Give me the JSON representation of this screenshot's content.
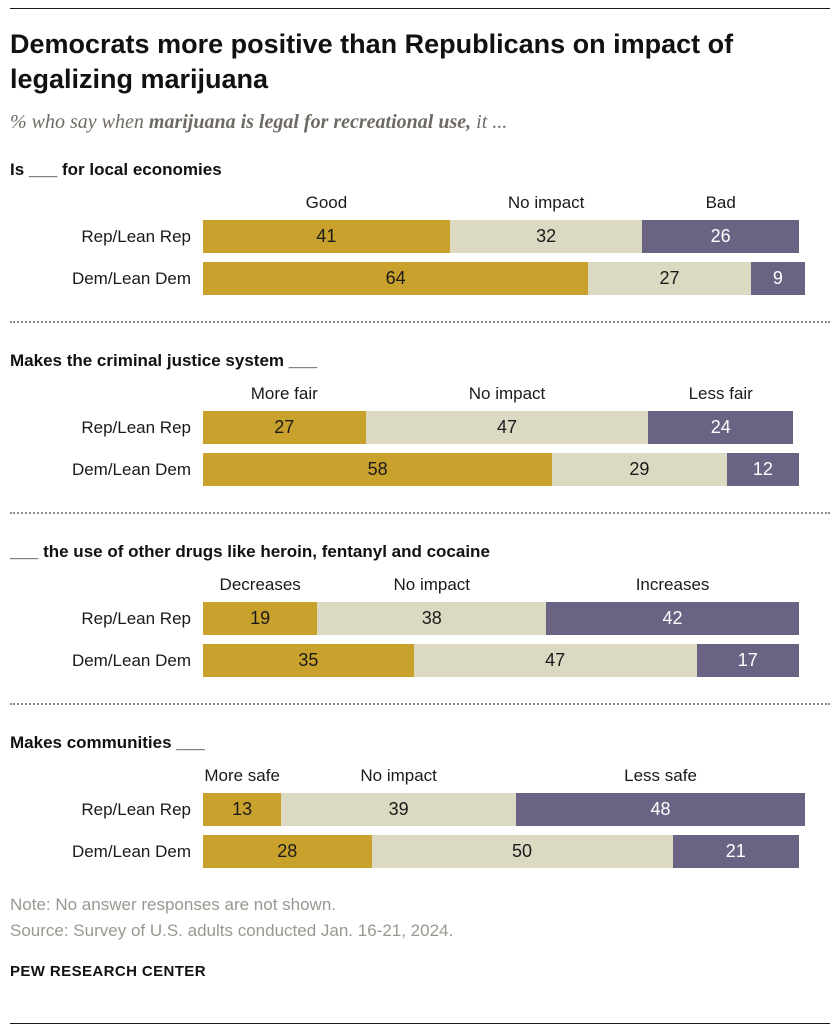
{
  "header": {
    "title": "Democrats more positive than Republicans on impact of legalizing marijuana",
    "subtitle_prefix": "% who say when ",
    "subtitle_bold": "marijuana is legal for recreational use,",
    "subtitle_suffix": " it ..."
  },
  "chart_data": {
    "type": "bar",
    "variant": "horizontal-stacked",
    "title": "Democrats more positive than Republicans on impact of legalizing marijuana",
    "xlim": [
      0,
      100
    ],
    "grid": false,
    "legend": "inline-above-bars",
    "colors": [
      "#C9A22D",
      "#DCD9C3",
      "#6B6384"
    ],
    "value_text_colors": [
      "#1a1a1a",
      "#1a1a1a",
      "#ffffff"
    ],
    "sections": [
      {
        "heading": "Is ___ for local economies",
        "segment_labels": [
          "Good",
          "No impact",
          "Bad"
        ],
        "rows": [
          {
            "label": "Rep/Lean Rep",
            "values": [
              41,
              32,
              26
            ]
          },
          {
            "label": "Dem/Lean Dem",
            "values": [
              64,
              27,
              9
            ]
          }
        ]
      },
      {
        "heading": "Makes the criminal justice system ___",
        "segment_labels": [
          "More fair",
          "No impact",
          "Less fair"
        ],
        "rows": [
          {
            "label": "Rep/Lean Rep",
            "values": [
              27,
              47,
              24
            ]
          },
          {
            "label": "Dem/Lean Dem",
            "values": [
              58,
              29,
              12
            ]
          }
        ]
      },
      {
        "heading": "___ the use of other drugs like heroin, fentanyl and cocaine",
        "segment_labels": [
          "Decreases",
          "No impact",
          "Increases"
        ],
        "rows": [
          {
            "label": "Rep/Lean Rep",
            "values": [
              19,
              38,
              42
            ]
          },
          {
            "label": "Dem/Lean Dem",
            "values": [
              35,
              47,
              17
            ]
          }
        ]
      },
      {
        "heading": "Makes communities ___",
        "segment_labels": [
          "More safe",
          "No impact",
          "Less safe"
        ],
        "rows": [
          {
            "label": "Rep/Lean Rep",
            "values": [
              13,
              39,
              48
            ]
          },
          {
            "label": "Dem/Lean Dem",
            "values": [
              28,
              50,
              21
            ]
          }
        ]
      }
    ]
  },
  "footer": {
    "note": "Note: No answer responses are not shown.",
    "source": "Source: Survey of U.S. adults conducted Jan. 16-21, 2024.",
    "brand": "PEW RESEARCH CENTER"
  }
}
